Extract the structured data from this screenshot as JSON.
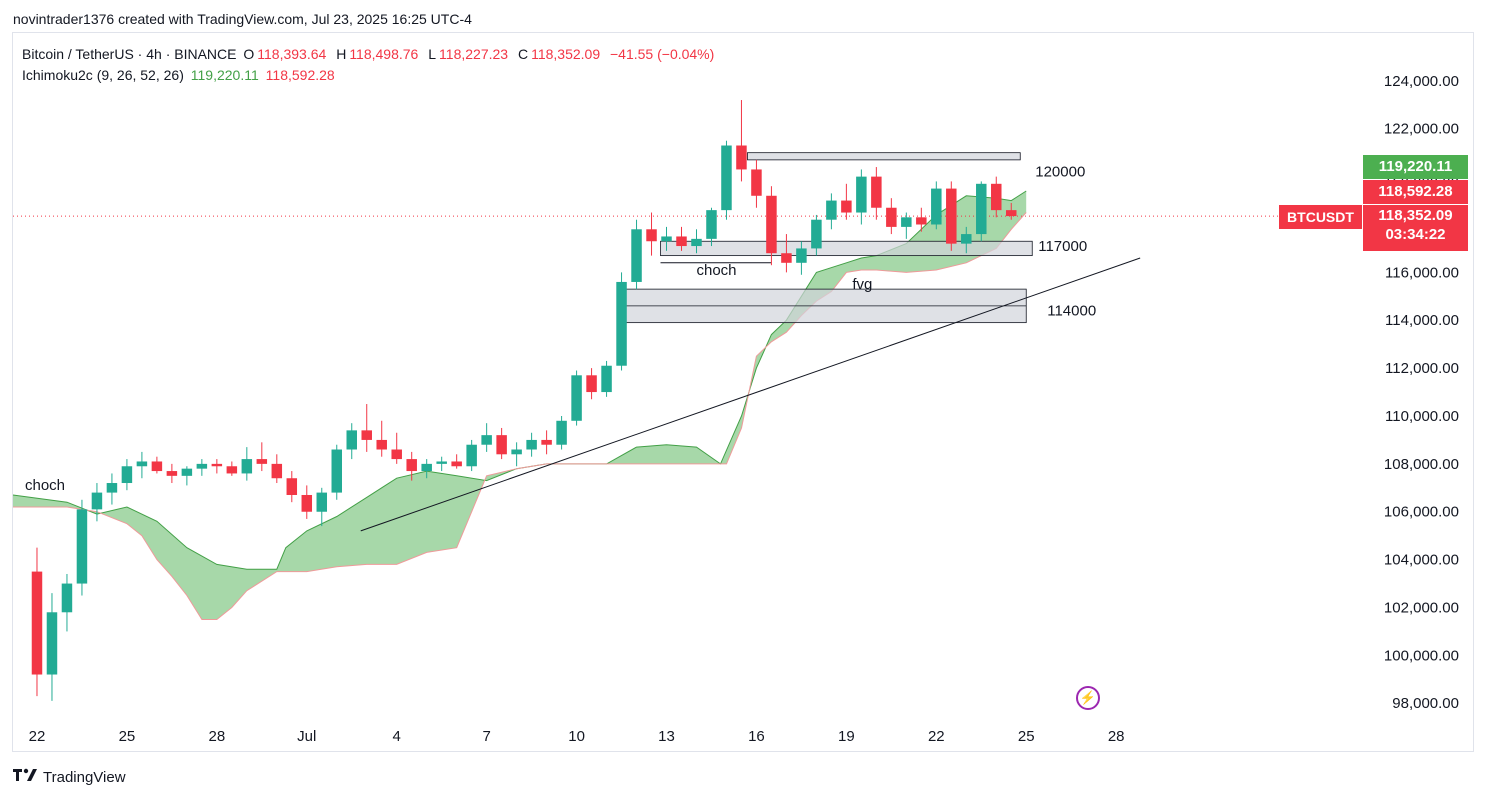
{
  "header": {
    "attribution": "novintrader1376 created with TradingView.com, Jul 23, 2025 16:25 UTC-4"
  },
  "legend": {
    "symbol": "Bitcoin / TetherUS · 4h · BINANCE",
    "open_label": "O",
    "open": "118,393.64",
    "high_label": "H",
    "high": "118,498.76",
    "low_label": "L",
    "low": "118,227.23",
    "close_label": "C",
    "close": "118,352.09",
    "change": "−41.55 (−0.04%)",
    "indicator": "Ichimoku2c (9, 26, 52, 26)",
    "indicator_value_1": "119,220.11",
    "indicator_value_2": "118,592.28"
  },
  "price_tags": {
    "tag_green": "119,220.11",
    "tag_red1": "118,592.28",
    "tag_last": "118,352.09",
    "countdown": "03:34:22",
    "ticker": "BTCUSDT"
  },
  "footer": {
    "brand": "TradingView"
  },
  "icons": {
    "replay": "lightning-bolt-icon"
  },
  "colors": {
    "up": "#22ab94",
    "down": "#f23645",
    "cloud": "#81c784",
    "zone": "#d1d4dc",
    "tag_green": "#4caf50",
    "tag_red": "#f23645"
  },
  "chart_data": {
    "type": "candlestick",
    "title": "Bitcoin / TetherUS · 4h · BINANCE",
    "y_axis": {
      "ticks": [
        98000,
        100000,
        102000,
        104000,
        106000,
        108000,
        110000,
        112000,
        114000,
        116000,
        118000,
        120000,
        122000,
        124000
      ],
      "tick_labels": [
        "98,000.00",
        "100,000.00",
        "102,000.00",
        "104,000.00",
        "106,000.00",
        "108,000.00",
        "110,000.00",
        "112,000.00",
        "114,000.00",
        "116,000.00",
        "118,000.00",
        "120,000.00",
        "122,000.00",
        "124,000.00"
      ],
      "ylim": [
        97300,
        126000
      ]
    },
    "x_axis": {
      "tick_labels": [
        "22",
        "25",
        "28",
        "Jul",
        "4",
        "7",
        "10",
        "13",
        "16",
        "19",
        "22",
        "25",
        "28"
      ],
      "tick_days": [
        0,
        3,
        6,
        9,
        12,
        15,
        18,
        21,
        24,
        27,
        30,
        33,
        36
      ],
      "xlim": [
        -0.8,
        43.8
      ]
    },
    "last_price": 118352.09,
    "candles_approx": [
      [
        0,
        103500,
        104500,
        98300,
        99200
      ],
      [
        0.5,
        99200,
        102600,
        98100,
        101800
      ],
      [
        1,
        101800,
        103400,
        101000,
        103000
      ],
      [
        1.5,
        103000,
        106500,
        102500,
        106100
      ],
      [
        2,
        106100,
        107200,
        105600,
        106800
      ],
      [
        2.5,
        106800,
        107600,
        106300,
        107200
      ],
      [
        3,
        107200,
        108200,
        106900,
        107900
      ],
      [
        3.5,
        107900,
        108500,
        107400,
        108100
      ],
      [
        4,
        108100,
        108300,
        107600,
        107700
      ],
      [
        4.5,
        107700,
        108000,
        107200,
        107500
      ],
      [
        5,
        107500,
        107900,
        107100,
        107800
      ],
      [
        5.5,
        107800,
        108200,
        107500,
        108000
      ],
      [
        6,
        108000,
        108200,
        107600,
        107900
      ],
      [
        6.5,
        107900,
        108100,
        107500,
        107600
      ],
      [
        7,
        107600,
        108700,
        107300,
        108200
      ],
      [
        7.5,
        108200,
        108900,
        107700,
        108000
      ],
      [
        8,
        108000,
        108400,
        107200,
        107400
      ],
      [
        8.5,
        107400,
        107700,
        106400,
        106700
      ],
      [
        9,
        106700,
        107100,
        105700,
        106000
      ],
      [
        9.5,
        106000,
        107000,
        105400,
        106800
      ],
      [
        10,
        106800,
        108800,
        106500,
        108600
      ],
      [
        10.5,
        108600,
        109700,
        108200,
        109400
      ],
      [
        11,
        109400,
        110500,
        108500,
        109000
      ],
      [
        11.5,
        109000,
        109800,
        108300,
        108600
      ],
      [
        12,
        108600,
        109300,
        108000,
        108200
      ],
      [
        12.5,
        108200,
        108500,
        107300,
        107700
      ],
      [
        13,
        107700,
        108200,
        107400,
        108000
      ],
      [
        13.5,
        108000,
        108300,
        107700,
        108100
      ],
      [
        14,
        108100,
        108400,
        107800,
        107900
      ],
      [
        14.5,
        107900,
        109000,
        107700,
        108800
      ],
      [
        15,
        108800,
        109700,
        108500,
        109200
      ],
      [
        15.5,
        109200,
        109500,
        108200,
        108400
      ],
      [
        16,
        108400,
        108900,
        107900,
        108600
      ],
      [
        16.5,
        108600,
        109300,
        108300,
        109000
      ],
      [
        17,
        109000,
        109400,
        108400,
        108800
      ],
      [
        17.5,
        108800,
        110000,
        108600,
        109800
      ],
      [
        18,
        109800,
        111900,
        109600,
        111700
      ],
      [
        18.5,
        111700,
        112000,
        110700,
        111000
      ],
      [
        19,
        111000,
        112300,
        110800,
        112100
      ],
      [
        19.5,
        112100,
        116000,
        111900,
        115600
      ],
      [
        20,
        115600,
        118200,
        115300,
        117800
      ],
      [
        20.5,
        117800,
        118500,
        116700,
        117300
      ],
      [
        21,
        117300,
        117900,
        116900,
        117500
      ],
      [
        21.5,
        117500,
        117900,
        116900,
        117100
      ],
      [
        22,
        117100,
        117800,
        116800,
        117400
      ],
      [
        22.5,
        117400,
        118700,
        117100,
        118600
      ],
      [
        23,
        118600,
        121500,
        118200,
        121300
      ],
      [
        23.5,
        121300,
        123200,
        119800,
        120300
      ],
      [
        24,
        120300,
        120700,
        118700,
        119200
      ],
      [
        24.5,
        119200,
        119600,
        116300,
        116800
      ],
      [
        25,
        116800,
        117600,
        116000,
        116400
      ],
      [
        25.5,
        116400,
        117300,
        115900,
        117000
      ],
      [
        26,
        117000,
        118400,
        116700,
        118200
      ],
      [
        26.5,
        118200,
        119300,
        117800,
        119000
      ],
      [
        27,
        119000,
        119700,
        118200,
        118500
      ],
      [
        27.5,
        118500,
        120300,
        118000,
        120000
      ],
      [
        28,
        120000,
        120400,
        118200,
        118700
      ],
      [
        28.5,
        118700,
        119100,
        117600,
        117900
      ],
      [
        29,
        117900,
        118500,
        117400,
        118300
      ],
      [
        29.5,
        118300,
        118700,
        117700,
        118000
      ],
      [
        30,
        118000,
        119800,
        117800,
        119500
      ],
      [
        30.5,
        119500,
        119800,
        116900,
        117200
      ],
      [
        31,
        117200,
        117900,
        116800,
        117600
      ],
      [
        31.5,
        117600,
        119800,
        117300,
        119700
      ],
      [
        32,
        119700,
        120000,
        118300,
        118600
      ],
      [
        32.5,
        118600,
        118900,
        118200,
        118352
      ]
    ]
  },
  "annotations": {
    "zone_120k": "120000",
    "zone_117k": "117000",
    "zone_114k": "114000",
    "choch_left": "choch",
    "choch_mid": "choch",
    "fvg": "fvg"
  }
}
